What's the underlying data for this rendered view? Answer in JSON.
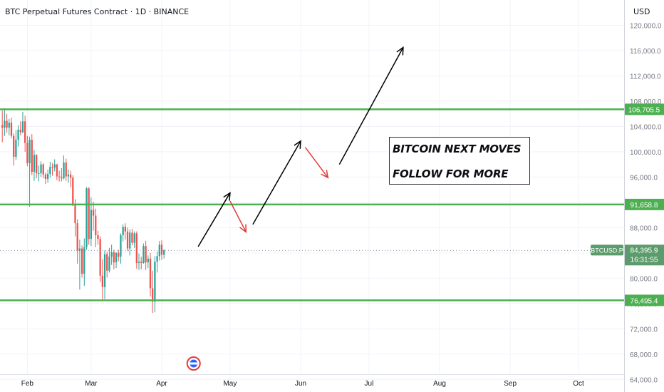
{
  "header": {
    "title": "BTC Perpetual Futures Contract · 1D · BINANCE",
    "currency": "USD"
  },
  "colors": {
    "up": "#26a69a",
    "down": "#ef5350",
    "level": "#4caf50",
    "level_label_bg": "#4caf50",
    "price_label_bg": "#5c9b6b",
    "arrow_up": "#000000",
    "arrow_down": "#e53935",
    "grid": "#f0f3fa",
    "axis_text": "#787b86"
  },
  "chart_data": {
    "type": "candlestick",
    "symbol": "BTCUSD.P",
    "interval": "1D",
    "ylim": [
      62000,
      124000
    ],
    "y_ticks": [
      64000,
      68000,
      72000,
      76000,
      80000,
      84000,
      88000,
      92000,
      96000,
      100000,
      104000,
      108000,
      112000,
      116000,
      120000
    ],
    "y_tick_labels": [
      "64,000.0",
      "68,000.0",
      "72,000.0",
      "76,000.0",
      "80,000.0",
      "84,000.0",
      "88,000.0",
      "92,000.0",
      "96,000.0",
      "100,000.0",
      "104,000.0",
      "108,000.0",
      "112,000.0",
      "116,000.0",
      "120,000.0"
    ],
    "x_labels": [
      "Feb",
      "Mar",
      "Apr",
      "May",
      "Jun",
      "Jul",
      "Aug",
      "Sep",
      "Oct"
    ],
    "x_label_dates": [
      "2025-02-01",
      "2025-03-01",
      "2025-04-01",
      "2025-05-01",
      "2025-06-01",
      "2025-07-01",
      "2025-08-01",
      "2025-09-01",
      "2025-10-01"
    ],
    "x_range": [
      "2025-01-20",
      "2025-10-21"
    ],
    "first_candle_date": "2025-01-21",
    "candles": [
      [
        104200,
        106500,
        101500,
        103800
      ],
      [
        103800,
        106900,
        102500,
        104900
      ],
      [
        104900,
        106000,
        103000,
        103800
      ],
      [
        103800,
        105200,
        102600,
        104600
      ],
      [
        104600,
        105400,
        102100,
        102500
      ],
      [
        102500,
        102900,
        97800,
        99200
      ],
      [
        99200,
        103400,
        98700,
        101900
      ],
      [
        101900,
        104200,
        100800,
        103500
      ],
      [
        103500,
        104800,
        102600,
        103100
      ],
      [
        103100,
        106300,
        102900,
        104800
      ],
      [
        104800,
        105700,
        100000,
        101400
      ],
      [
        101400,
        102500,
        97700,
        98200
      ],
      [
        98200,
        102400,
        91300,
        101900
      ],
      [
        101900,
        102800,
        96300,
        96800
      ],
      [
        96800,
        100300,
        95400,
        99500
      ],
      [
        99500,
        99600,
        95800,
        96600
      ],
      [
        96600,
        97800,
        95300,
        96600
      ],
      [
        96600,
        98500,
        96000,
        98000
      ],
      [
        98000,
        98200,
        95800,
        96400
      ],
      [
        96400,
        96700,
        94900,
        95700
      ],
      [
        95700,
        97200,
        95100,
        96500
      ],
      [
        96500,
        98400,
        95900,
        97600
      ],
      [
        97600,
        98200,
        96200,
        97500
      ],
      [
        97500,
        98800,
        96900,
        98000
      ],
      [
        98000,
        98100,
        95500,
        96100
      ],
      [
        96100,
        97000,
        95300,
        96000
      ],
      [
        96000,
        97400,
        95300,
        95800
      ],
      [
        95800,
        99400,
        95600,
        98300
      ],
      [
        98300,
        98900,
        95400,
        96100
      ],
      [
        96100,
        97200,
        95100,
        96400
      ],
      [
        96400,
        97000,
        94400,
        95900
      ],
      [
        95900,
        96300,
        91400,
        91500
      ],
      [
        91500,
        92500,
        86600,
        88700
      ],
      [
        88700,
        89300,
        82300,
        84300
      ],
      [
        84300,
        86100,
        78200,
        84700
      ],
      [
        84700,
        85200,
        80100,
        80700
      ],
      [
        80700,
        86300,
        78800,
        84900
      ],
      [
        84900,
        94400,
        84500,
        94200
      ],
      [
        94200,
        94400,
        85300,
        86200
      ],
      [
        86200,
        92800,
        85100,
        90800
      ],
      [
        90800,
        92100,
        87500,
        89900
      ],
      [
        89900,
        91000,
        84900,
        86800
      ],
      [
        86800,
        87500,
        85300,
        86200
      ],
      [
        86200,
        86600,
        79400,
        80400
      ],
      [
        80400,
        83000,
        76600,
        78600
      ],
      [
        78600,
        84400,
        76700,
        83800
      ],
      [
        83800,
        84200,
        80100,
        81200
      ],
      [
        81200,
        84800,
        80900,
        83400
      ],
      [
        83400,
        85300,
        82100,
        84100
      ],
      [
        84100,
        84500,
        81400,
        82500
      ],
      [
        82500,
        84100,
        81600,
        84000
      ],
      [
        84000,
        84500,
        82700,
        83400
      ],
      [
        83400,
        87100,
        82300,
        86800
      ],
      [
        86800,
        88500,
        85800,
        88100
      ],
      [
        88100,
        88700,
        86100,
        87400
      ],
      [
        87400,
        88000,
        84300,
        84700
      ],
      [
        84700,
        87700,
        83600,
        87200
      ],
      [
        87200,
        87800,
        85200,
        85600
      ],
      [
        85600,
        87400,
        84800,
        87100
      ],
      [
        87100,
        87400,
        81500,
        82400
      ],
      [
        82400,
        83900,
        81300,
        82600
      ],
      [
        82600,
        83400,
        81400,
        82400
      ],
      [
        82400,
        85500,
        82300,
        85100
      ],
      [
        85100,
        85900,
        81300,
        82500
      ],
      [
        82500,
        83600,
        81600,
        83100
      ],
      [
        83100,
        84000,
        77100,
        78400
      ],
      [
        78400,
        81200,
        74500,
        76300
      ],
      [
        76300,
        83500,
        74600,
        82600
      ],
      [
        82600,
        84200,
        80900,
        83500
      ],
      [
        83500,
        85900,
        82800,
        85300
      ],
      [
        85300,
        86000,
        82900,
        83700
      ],
      [
        83700,
        84600,
        83100,
        84400
      ]
    ],
    "levels": [
      {
        "price": 106705.5,
        "label": "106,705.5"
      },
      {
        "price": 91658.8,
        "label": "91,658.8"
      },
      {
        "price": 76495.4,
        "label": "76,495.4"
      }
    ],
    "last_price": {
      "symbol": "BTCUSD.P",
      "price": 84395.9,
      "label": "84,395.9",
      "countdown": "16:31:55"
    },
    "annotation_arrows": [
      {
        "color": "black",
        "from": [
          "2025-04-17",
          85000
        ],
        "to": [
          "2025-05-01",
          93500
        ]
      },
      {
        "color": "red",
        "from": [
          "2025-05-01",
          92200
        ],
        "to": [
          "2025-05-08",
          87300
        ]
      },
      {
        "color": "black",
        "from": [
          "2025-05-11",
          88500
        ],
        "to": [
          "2025-06-01",
          101700
        ]
      },
      {
        "color": "red",
        "from": [
          "2025-06-03",
          100700
        ],
        "to": [
          "2025-06-13",
          95900
        ]
      },
      {
        "color": "black",
        "from": [
          "2025-06-18",
          98000
        ],
        "to": [
          "2025-07-16",
          116500
        ]
      }
    ],
    "text_box": [
      "BITCOIN NEXT MOVES",
      "FOLLOW FOR MORE"
    ]
  }
}
